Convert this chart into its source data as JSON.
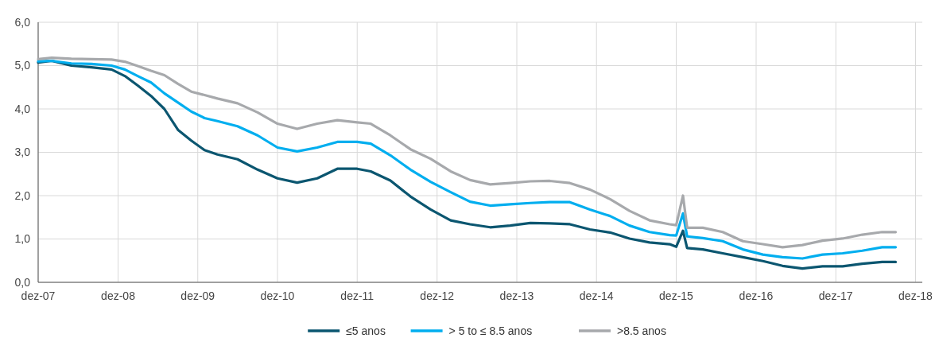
{
  "chart_data": {
    "type": "line",
    "x": [
      "2007-12",
      "2008-02",
      "2008-05",
      "2008-08",
      "2008-11",
      "2009-01",
      "2009-03",
      "2009-05",
      "2009-07",
      "2009-09",
      "2009-11",
      "2010-01",
      "2010-03",
      "2010-06",
      "2010-09",
      "2010-12",
      "2011-03",
      "2011-06",
      "2011-09",
      "2011-12",
      "2012-02",
      "2012-05",
      "2012-08",
      "2012-11",
      "2013-02",
      "2013-05",
      "2013-08",
      "2013-11",
      "2014-02",
      "2014-05",
      "2014-08",
      "2014-11",
      "2015-02",
      "2015-05",
      "2015-08",
      "2015-11",
      "2015-12",
      "2016-01",
      "2016-01-20",
      "2016-04",
      "2016-07",
      "2016-10",
      "2017-01",
      "2017-04",
      "2017-07",
      "2017-10",
      "2018-01",
      "2018-04",
      "2018-07",
      "2018-09"
    ],
    "series": [
      {
        "name": "≤5 anos",
        "color": "#0b5670",
        "values": [
          5.07,
          5.11,
          5.0,
          4.96,
          4.91,
          4.76,
          4.54,
          4.3,
          4.0,
          3.52,
          3.27,
          3.05,
          2.95,
          2.84,
          2.6,
          2.4,
          2.3,
          2.4,
          2.62,
          2.62,
          2.56,
          2.35,
          1.98,
          1.68,
          1.43,
          1.34,
          1.27,
          1.31,
          1.37,
          1.36,
          1.34,
          1.22,
          1.15,
          1.01,
          0.92,
          0.88,
          0.82,
          1.19,
          0.79,
          0.76,
          0.67,
          0.58,
          0.49,
          0.38,
          0.32,
          0.37,
          0.37,
          0.43,
          0.47,
          0.47
        ]
      },
      {
        "name": "> 5 to ≤ 8.5 anos",
        "color": "#00aeef",
        "values": [
          5.1,
          5.11,
          5.05,
          5.04,
          5.0,
          4.91,
          4.76,
          4.61,
          4.36,
          4.15,
          3.94,
          3.79,
          3.72,
          3.6,
          3.39,
          3.11,
          3.02,
          3.11,
          3.24,
          3.24,
          3.2,
          2.93,
          2.6,
          2.32,
          2.08,
          1.86,
          1.77,
          1.8,
          1.83,
          1.85,
          1.85,
          1.68,
          1.53,
          1.31,
          1.16,
          1.09,
          1.08,
          1.59,
          1.06,
          1.02,
          0.95,
          0.76,
          0.64,
          0.58,
          0.55,
          0.64,
          0.67,
          0.73,
          0.81,
          0.81
        ]
      },
      {
        "name": ">8.5 anos",
        "color": "#a7a9ac",
        "values": [
          5.15,
          5.18,
          5.16,
          5.15,
          5.14,
          5.09,
          4.99,
          4.88,
          4.78,
          4.58,
          4.4,
          4.32,
          4.24,
          4.13,
          3.92,
          3.66,
          3.54,
          3.66,
          3.74,
          3.69,
          3.66,
          3.39,
          3.07,
          2.85,
          2.56,
          2.36,
          2.26,
          2.29,
          2.33,
          2.34,
          2.29,
          2.14,
          1.92,
          1.65,
          1.43,
          1.34,
          1.32,
          2.0,
          1.26,
          1.26,
          1.16,
          0.95,
          0.88,
          0.81,
          0.86,
          0.96,
          1.01,
          1.1,
          1.16,
          1.16
        ]
      }
    ],
    "xlim": [
      "2007-12",
      "2019-01"
    ],
    "xticks": [
      {
        "value": "2007-12",
        "label": "dez-07"
      },
      {
        "value": "2008-12",
        "label": "dez-08"
      },
      {
        "value": "2009-12",
        "label": "dez-09"
      },
      {
        "value": "2010-12",
        "label": "dez-10"
      },
      {
        "value": "2011-12",
        "label": "dez-11"
      },
      {
        "value": "2012-12",
        "label": "dez-12"
      },
      {
        "value": "2013-12",
        "label": "dez-13"
      },
      {
        "value": "2014-12",
        "label": "dez-14"
      },
      {
        "value": "2015-12",
        "label": "dez-15"
      },
      {
        "value": "2016-12",
        "label": "dez-16"
      },
      {
        "value": "2017-12",
        "label": "dez-17"
      },
      {
        "value": "2018-12",
        "label": "dez-18"
      }
    ],
    "ylim": [
      0,
      6
    ],
    "yticks": [
      {
        "value": 0,
        "label": "0,0"
      },
      {
        "value": 1,
        "label": "1,0"
      },
      {
        "value": 2,
        "label": "2,0"
      },
      {
        "value": 3,
        "label": "3,0"
      },
      {
        "value": 4,
        "label": "4,0"
      },
      {
        "value": 5,
        "label": "5,0"
      },
      {
        "value": 6,
        "label": "6,0"
      }
    ],
    "grid": true,
    "legend": "bottom",
    "line_style": "solid",
    "marker": "none"
  }
}
